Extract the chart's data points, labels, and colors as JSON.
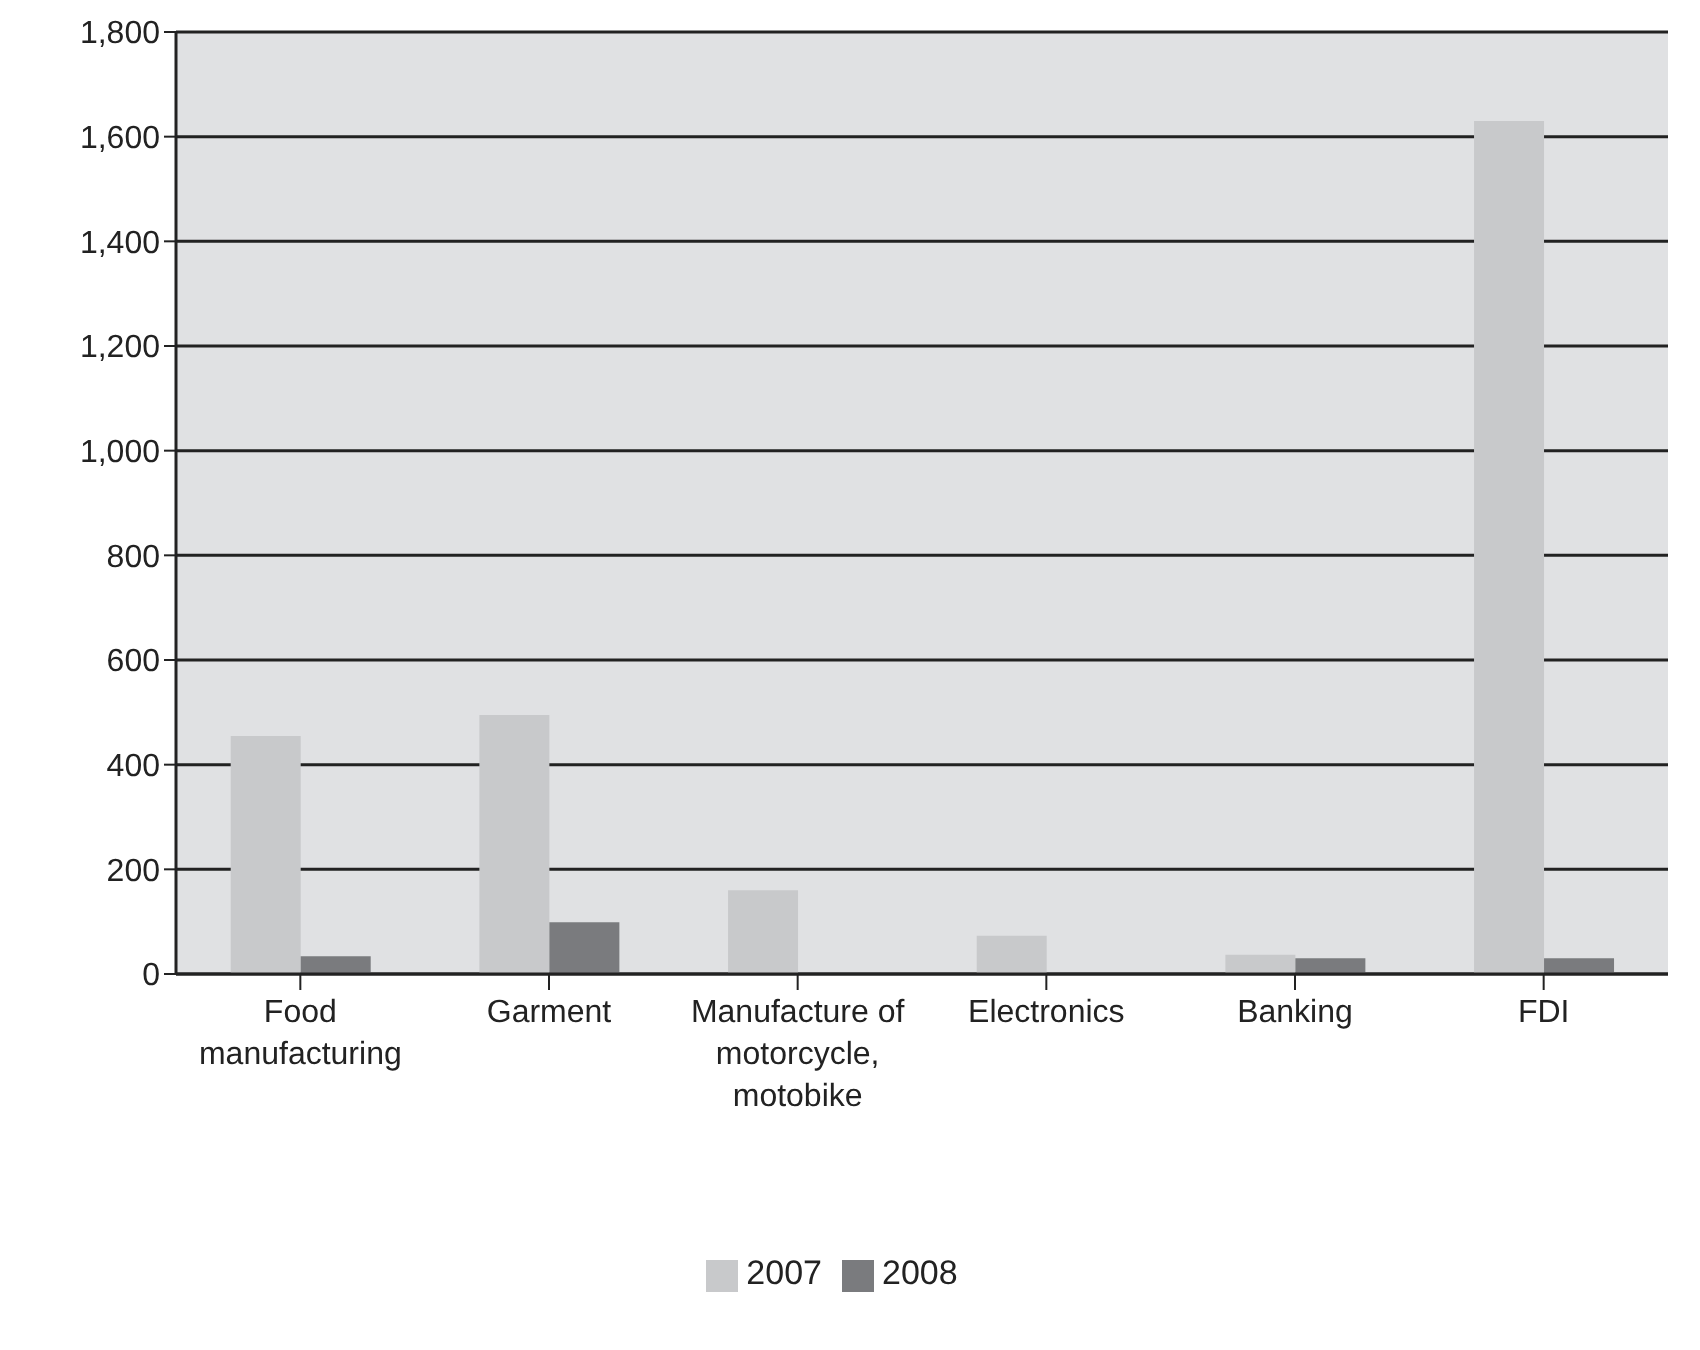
{
  "chart_data": {
    "type": "bar",
    "categories": [
      "Food manufacturing",
      "Garment",
      "Manufacture of motorcycle, motobike",
      "Electronics",
      "Banking",
      "FDI"
    ],
    "series": [
      {
        "name": "2007",
        "color": "#c8c9cb",
        "values": [
          455,
          495,
          160,
          73,
          37,
          1630
        ]
      },
      {
        "name": "2008",
        "color": "#7a7b7e",
        "values": [
          34,
          99,
          null,
          null,
          30,
          30
        ]
      }
    ],
    "ylim": [
      0,
      1800
    ],
    "yticks": [
      {
        "value": 0,
        "label": "0"
      },
      {
        "value": 200,
        "label": "200"
      },
      {
        "value": 400,
        "label": "400"
      },
      {
        "value": 600,
        "label": "600"
      },
      {
        "value": 800,
        "label": "800"
      },
      {
        "value": 1000,
        "label": "1,000"
      },
      {
        "value": 1200,
        "label": "1,200"
      },
      {
        "value": 1400,
        "label": "1,400"
      },
      {
        "value": 1600,
        "label": "1,600"
      },
      {
        "value": 1800,
        "label": "1,800"
      }
    ],
    "grid": "y",
    "legend": "bottom"
  }
}
